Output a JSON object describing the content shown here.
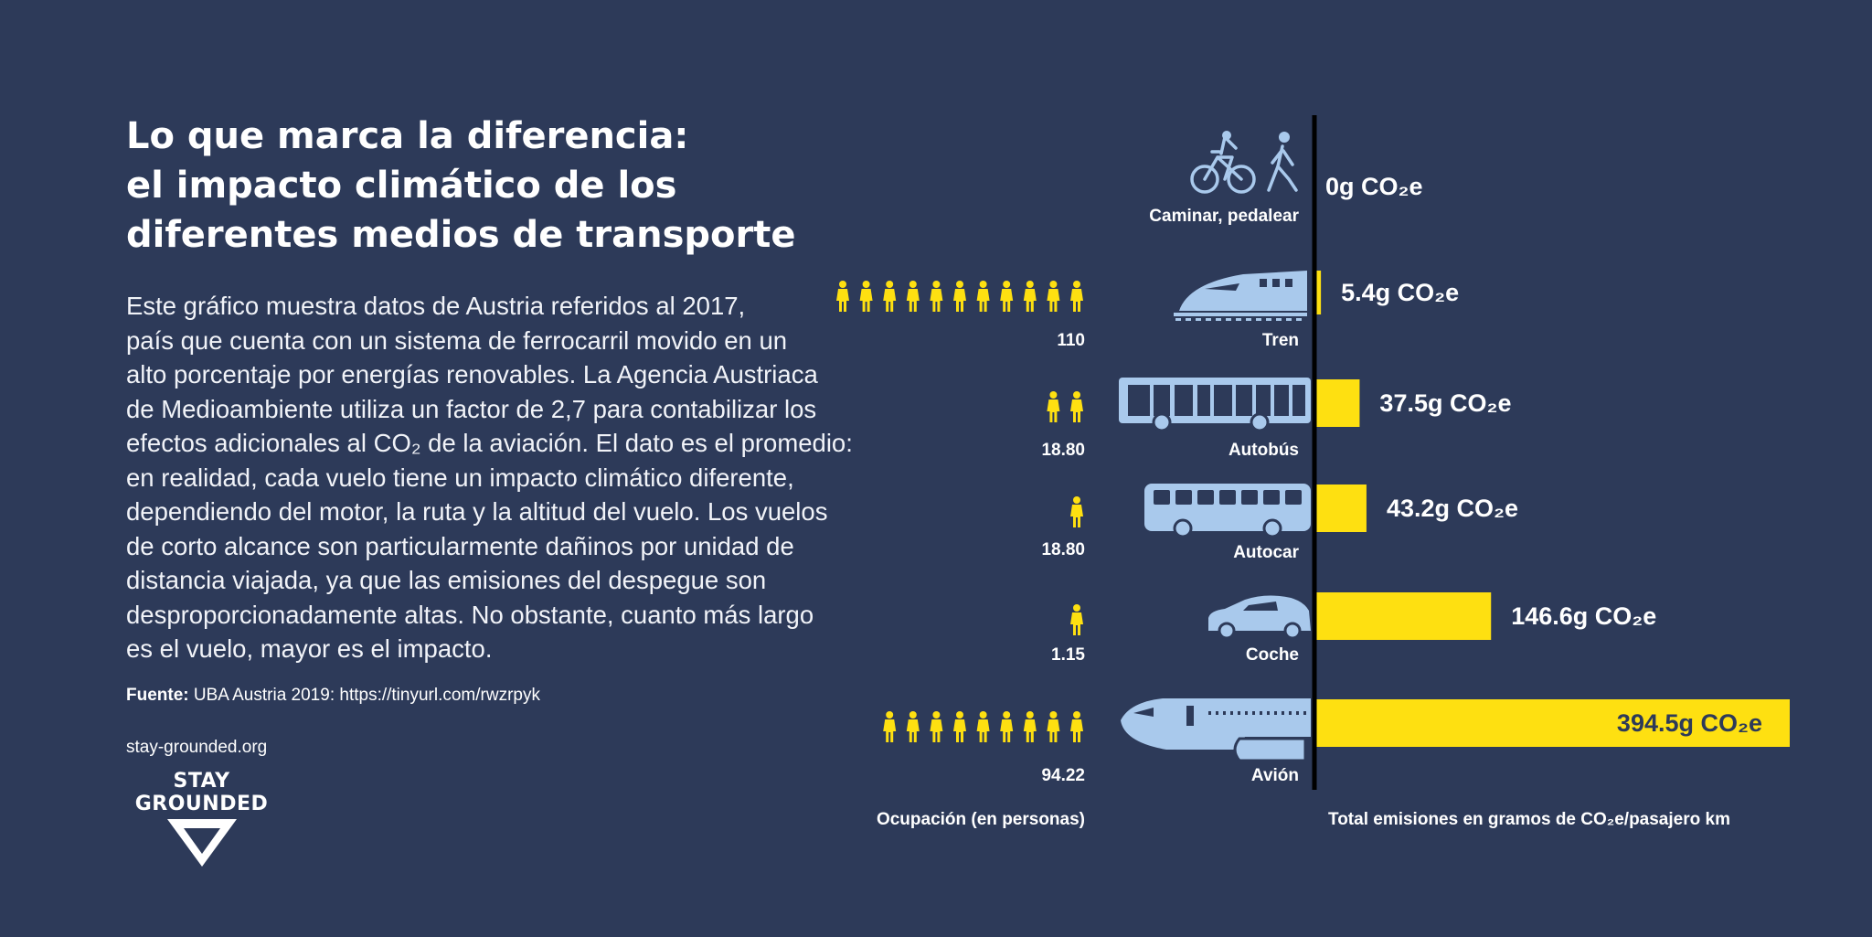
{
  "title_lines": [
    "Lo que marca la diferencia:",
    "el impacto climático de los",
    "diferentes medios de transporte"
  ],
  "body_lines": [
    "Este gráfico muestra datos de Austria referidos al 2017,",
    "país que cuenta con un sistema de ferrocarril movido en un",
    "alto porcentaje por energías renovables. La Agencia Austriaca",
    "de Medioambiente utiliza un factor de 2,7 para contabilizar los",
    "efectos adicionales al CO₂ de la aviación. El dato es el promedio:",
    "en realidad, cada vuelo tiene un impacto climático diferente,",
    "dependiendo del motor, la ruta y la altitud del vuelo. Los vuelos",
    "de corto alcance son particularmente dañinos por unidad de",
    "distancia viajada, ya que las emisiones del despegue son",
    "desproporcionadamente altas. No obstante, cuanto más largo",
    "es el vuelo, mayor es el impacto."
  ],
  "source": {
    "label": "Fuente:",
    "text": " UBA Austria 2019: https://tinyurl.com/rwzrpyk"
  },
  "site": "stay-grounded.org",
  "logo": {
    "line1": "STAY",
    "line2": "GROUNDED"
  },
  "colors": {
    "background": "#2d3a59",
    "bar": "#fee011",
    "icon": "#a9c9ec",
    "person": "#fee011",
    "axis": "#000000"
  },
  "chart_data": {
    "type": "bar",
    "orientation": "horizontal",
    "categories": [
      "Caminar, pedalear",
      "Tren",
      "Autobús",
      "Autocar",
      "Coche",
      "Avión"
    ],
    "values": [
      0,
      5.4,
      37.5,
      43.2,
      146.6,
      394.5
    ],
    "value_labels": [
      "0g CO₂e",
      "5.4g CO₂e",
      "37.5g CO₂e",
      "43.2g CO₂e",
      "146.6g CO₂e",
      "394.5g CO₂e"
    ],
    "occupancy": [
      "",
      "110",
      "18.80",
      "18.80",
      "1.15",
      "94.22"
    ],
    "person_icons": [
      0,
      11,
      2,
      1,
      1,
      9
    ],
    "vehicle_icons": [
      "bike-walk-icon",
      "train-icon",
      "bus-icon",
      "coach-icon",
      "car-icon",
      "plane-icon"
    ],
    "xlim": [
      0,
      394.5
    ],
    "left_axis_title": "Ocupación (en personas)",
    "right_axis_title": "Total emisiones en gramos de CO₂e/pasajero km",
    "grid": false,
    "legend": "none"
  }
}
